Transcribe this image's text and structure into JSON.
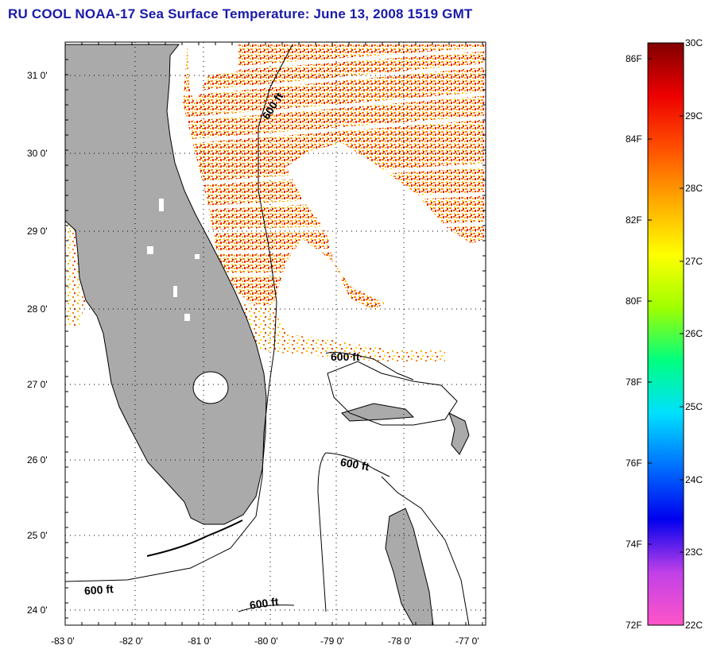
{
  "title": "RU COOL  NOAA-17  Sea Surface Temperature:  June 13, 2008 1519 GMT",
  "map": {
    "lat_ticks": [
      "31 0'",
      "30 0'",
      "29 0'",
      "28 0'",
      "27 0'",
      "26 0'",
      "25 0'",
      "24 0'"
    ],
    "lon_ticks": [
      "-83 0'",
      "-82 0'",
      "-81 0'",
      "-80 0'",
      "-79 0'",
      "-78 0'",
      "-77 0'"
    ],
    "lat_range": [
      23.8,
      31.4
    ],
    "lon_range": [
      -83.0,
      -76.9
    ],
    "grid": "dotted",
    "contour_label": "600 ft",
    "contour_labels": [
      "600 ft",
      "600 ft",
      "600 ft",
      "600 ft",
      "600 ft"
    ],
    "land_color": "#aaaaaa"
  },
  "colorbar": {
    "fahrenheit_labels": [
      "86F",
      "84F",
      "82F",
      "80F",
      "78F",
      "76F",
      "74F",
      "72F"
    ],
    "celsius_labels": [
      "30C",
      "29C",
      "28C",
      "27C",
      "26C",
      "25C",
      "24C",
      "23C",
      "22C"
    ],
    "celsius_range": [
      22,
      30
    ],
    "colors": [
      "#ff55c8",
      "#c040e8",
      "#0000ee",
      "#0070ff",
      "#00e0ff",
      "#00ff80",
      "#a0ff00",
      "#ffff00",
      "#ffaa00",
      "#ff5000",
      "#ee0000",
      "#800000"
    ]
  }
}
